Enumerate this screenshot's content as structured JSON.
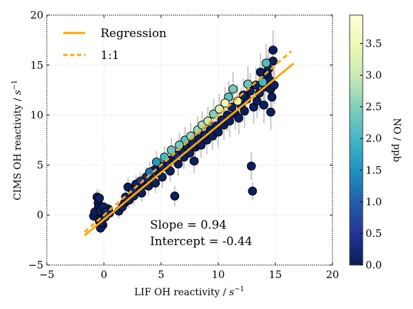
{
  "chart_data": {
    "type": "scatter",
    "title": "",
    "xlabel": "LIF OH reactivity / ",
    "xlabel_unit": "s",
    "xlabel_exp": "−1",
    "ylabel": "CIMS OH reactivity / ",
    "ylabel_unit": "s",
    "ylabel_exp": "−1",
    "xlim": [
      -5,
      20
    ],
    "ylim": [
      -5,
      20
    ],
    "xticks": [
      -5,
      0,
      5,
      10,
      15,
      20
    ],
    "yticks": [
      -5,
      0,
      5,
      10,
      15,
      20
    ],
    "xtick_labels": [
      "−5",
      "0",
      "5",
      "10",
      "15",
      "20"
    ],
    "ytick_labels": [
      "−5",
      "0",
      "5",
      "10",
      "15",
      "20"
    ],
    "grid": true,
    "legend": {
      "placement": "top-left",
      "entries": [
        {
          "label": "Regression",
          "style": "solid",
          "color": "#ffa500"
        },
        {
          "label": "1:1",
          "style": "dashed",
          "color": "#ffa500"
        }
      ]
    },
    "regression": {
      "slope": 0.94,
      "intercept": -0.44,
      "x_range": [
        -1.7,
        16.6
      ]
    },
    "one_to_one": {
      "x_range": [
        -1.7,
        16.4
      ]
    },
    "annotations": [
      "Slope = 0.94",
      "Intercept = -0.44"
    ],
    "colorbar": {
      "label": "NO / ppb",
      "range": [
        0.0,
        3.95
      ],
      "ticks": [
        0.0,
        0.5,
        1.0,
        1.5,
        2.0,
        2.5,
        3.0,
        3.5
      ],
      "tick_labels": [
        "0.0",
        "0.5",
        "1.0",
        "1.5",
        "2.0",
        "2.5",
        "3.0",
        "3.5"
      ],
      "colormap": "YlGnBu",
      "colormap_stops": [
        "#081d58",
        "#253494",
        "#225ea8",
        "#1d91c0",
        "#41b6c4",
        "#7fcdbb",
        "#c7e9b4",
        "#edf8b1",
        "#ffffd9"
      ]
    },
    "series": [
      {
        "name": "measurements",
        "columns": [
          "x",
          "y",
          "yerr",
          "no_ppb"
        ],
        "points": [
          [
            -0.6,
            1.8,
            0.8,
            0.05
          ],
          [
            -0.4,
            1.7,
            0.8,
            0.1
          ],
          [
            -0.5,
            1.2,
            0.7,
            0.05
          ],
          [
            -0.5,
            0.7,
            0.6,
            0.05
          ],
          [
            -0.7,
            0.1,
            0.6,
            0.05
          ],
          [
            -0.3,
            0.4,
            0.6,
            0.1
          ],
          [
            -0.2,
            -0.3,
            0.6,
            0.05
          ],
          [
            -0.4,
            -0.6,
            0.6,
            0.05
          ],
          [
            -0.1,
            -1.0,
            0.6,
            0.05
          ],
          [
            -0.3,
            -1.3,
            0.6,
            0.05
          ],
          [
            0.1,
            -0.2,
            0.6,
            0.3
          ],
          [
            0.2,
            0.3,
            0.6,
            0.2
          ],
          [
            0.4,
            0.6,
            0.6,
            0.1
          ],
          [
            0.5,
            0.2,
            0.6,
            0.05
          ],
          [
            -0.9,
            -0.1,
            0.6,
            0.05
          ],
          [
            -0.8,
            0.3,
            0.6,
            0.05
          ],
          [
            0.0,
            0.8,
            0.6,
            0.1
          ],
          [
            -0.2,
            -0.8,
            0.6,
            0.05
          ],
          [
            1.3,
            0.4,
            0.8,
            0.05
          ],
          [
            1.6,
            0.8,
            0.8,
            0.1
          ],
          [
            1.8,
            1.2,
            0.8,
            0.05
          ],
          [
            1.9,
            1.8,
            0.8,
            0.1
          ],
          [
            2.1,
            2.8,
            0.9,
            0.05
          ],
          [
            2.2,
            1.5,
            0.8,
            0.05
          ],
          [
            2.5,
            2.4,
            0.9,
            0.2
          ],
          [
            2.6,
            1.9,
            0.9,
            0.05
          ],
          [
            2.8,
            3.1,
            0.9,
            0.1
          ],
          [
            3.0,
            2.6,
            0.9,
            0.05
          ],
          [
            3.2,
            3.4,
            0.9,
            0.4
          ],
          [
            3.3,
            2.2,
            0.9,
            0.05
          ],
          [
            3.5,
            3.0,
            1.0,
            0.05
          ],
          [
            3.7,
            3.8,
            1.0,
            0.3
          ],
          [
            3.9,
            2.9,
            1.0,
            0.05
          ],
          [
            4.0,
            4.3,
            1.0,
            1.2
          ],
          [
            4.2,
            3.6,
            1.0,
            0.05
          ],
          [
            4.4,
            4.5,
            1.0,
            0.1
          ],
          [
            4.5,
            3.2,
            1.0,
            0.05
          ],
          [
            4.6,
            5.3,
            1.1,
            1.6
          ],
          [
            4.8,
            4.2,
            1.0,
            0.05
          ],
          [
            5.0,
            4.9,
            1.1,
            0.2
          ],
          [
            5.1,
            3.8,
            1.1,
            0.05
          ],
          [
            5.3,
            5.8,
            1.1,
            2.0
          ],
          [
            5.4,
            4.8,
            1.1,
            0.05
          ],
          [
            5.6,
            5.2,
            1.1,
            0.1
          ],
          [
            5.8,
            4.4,
            1.1,
            0.05
          ],
          [
            5.9,
            6.5,
            1.2,
            2.3
          ],
          [
            6.0,
            5.6,
            1.2,
            0.05
          ],
          [
            6.2,
            1.9,
            1.0,
            0.05
          ],
          [
            6.3,
            6.0,
            1.2,
            0.2
          ],
          [
            6.5,
            5.1,
            1.2,
            0.05
          ],
          [
            6.6,
            7.0,
            1.2,
            2.4
          ],
          [
            6.8,
            6.3,
            1.2,
            0.1
          ],
          [
            7.0,
            5.8,
            1.2,
            0.05
          ],
          [
            7.1,
            7.5,
            1.3,
            2.2
          ],
          [
            7.3,
            6.7,
            1.3,
            0.05
          ],
          [
            7.5,
            6.2,
            1.3,
            0.05
          ],
          [
            7.6,
            7.9,
            1.3,
            2.6
          ],
          [
            7.8,
            7.1,
            1.3,
            0.1
          ],
          [
            7.9,
            5.4,
            1.2,
            0.05
          ],
          [
            8.0,
            6.8,
            1.3,
            0.05
          ],
          [
            8.2,
            8.5,
            1.4,
            2.7
          ],
          [
            8.3,
            7.6,
            1.3,
            0.05
          ],
          [
            8.5,
            7.0,
            1.3,
            0.05
          ],
          [
            8.6,
            9.0,
            1.4,
            2.8
          ],
          [
            8.8,
            8.0,
            1.4,
            0.1
          ],
          [
            9.0,
            7.5,
            1.4,
            0.05
          ],
          [
            9.1,
            9.4,
            1.4,
            3.0
          ],
          [
            9.3,
            8.5,
            1.4,
            0.05
          ],
          [
            9.5,
            7.9,
            1.4,
            0.05
          ],
          [
            9.6,
            10.1,
            1.5,
            2.5
          ],
          [
            9.8,
            8.9,
            1.5,
            0.05
          ],
          [
            10.0,
            8.3,
            1.5,
            0.05
          ],
          [
            10.1,
            10.6,
            1.5,
            3.2
          ],
          [
            10.3,
            9.5,
            1.5,
            0.1
          ],
          [
            10.5,
            9.0,
            1.5,
            0.05
          ],
          [
            10.6,
            11.2,
            1.6,
            3.5
          ],
          [
            10.8,
            10.0,
            1.6,
            0.05
          ],
          [
            10.9,
            11.8,
            1.6,
            2.2
          ],
          [
            11.0,
            9.4,
            1.6,
            0.05
          ],
          [
            11.2,
            10.8,
            1.6,
            0.1
          ],
          [
            11.3,
            12.6,
            1.7,
            2.4
          ],
          [
            11.5,
            10.1,
            1.6,
            0.05
          ],
          [
            11.7,
            11.4,
            1.7,
            3.4
          ],
          [
            11.8,
            9.7,
            1.6,
            0.05
          ],
          [
            12.0,
            11.0,
            1.7,
            0.05
          ],
          [
            12.2,
            12.0,
            1.7,
            0.1
          ],
          [
            12.3,
            10.4,
            1.7,
            0.05
          ],
          [
            12.5,
            11.6,
            1.7,
            0.05
          ],
          [
            12.6,
            13.1,
            1.8,
            2.3
          ],
          [
            12.8,
            12.4,
            1.8,
            0.05
          ],
          [
            12.9,
            4.9,
            1.4,
            0.05
          ],
          [
            13.0,
            2.4,
            0.9,
            0.05
          ],
          [
            13.1,
            10.8,
            1.7,
            0.05
          ],
          [
            13.3,
            13.0,
            1.8,
            0.1
          ],
          [
            13.4,
            11.4,
            1.7,
            0.05
          ],
          [
            13.6,
            12.2,
            1.8,
            0.05
          ],
          [
            13.7,
            14.3,
            1.9,
            0.05
          ],
          [
            13.9,
            13.3,
            1.8,
            2.0
          ],
          [
            14.0,
            11.0,
            1.8,
            0.05
          ],
          [
            14.1,
            12.8,
            1.8,
            0.05
          ],
          [
            14.2,
            15.2,
            1.9,
            2.1
          ],
          [
            14.3,
            14.0,
            1.9,
            0.05
          ],
          [
            14.5,
            13.5,
            1.9,
            0.05
          ],
          [
            14.6,
            12.6,
            1.8,
            0.05
          ],
          [
            14.7,
            11.8,
            1.8,
            0.05
          ],
          [
            14.8,
            16.5,
            2.0,
            0.05
          ],
          [
            14.8,
            15.4,
            1.9,
            0.05
          ],
          [
            14.6,
            10.3,
            1.8,
            0.05
          ],
          [
            14.9,
            13.0,
            1.9,
            0.05
          ],
          [
            14.4,
            14.6,
            1.9,
            0.05
          ]
        ]
      }
    ]
  }
}
